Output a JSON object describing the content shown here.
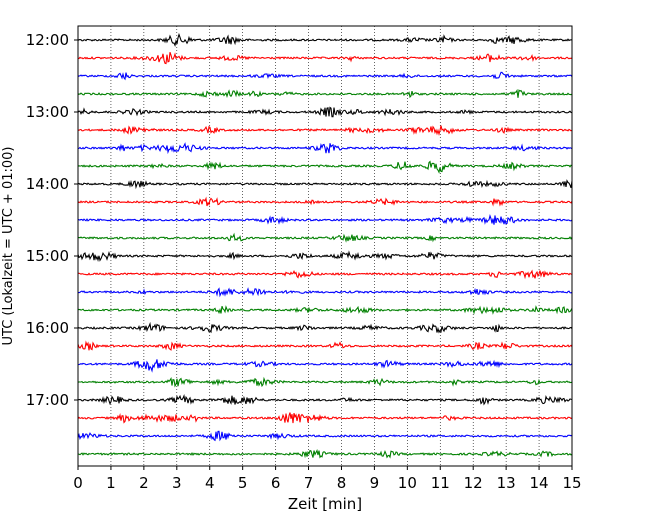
{
  "chart_data": {
    "type": "line",
    "subtype": "seismogram-helicorder",
    "xlabel": "Zeit  [min]",
    "ylabel": "UTC (Lokalzeit = UTC + 01:00)",
    "xlim": [
      0,
      15
    ],
    "x_ticks": [
      "0",
      "1",
      "2",
      "3",
      "4",
      "5",
      "6",
      "7",
      "8",
      "9",
      "10",
      "11",
      "12",
      "13",
      "14",
      "15"
    ],
    "y_ticks": [
      "12:00",
      "13:00",
      "14:00",
      "15:00",
      "16:00",
      "17:00"
    ],
    "x_grid": "dotted vertical lines at each minute",
    "trace_interval_minutes": 15,
    "start_time": "12:00",
    "trace_count": 24,
    "trace_colors": [
      "#000000",
      "#ff0000",
      "#0000ff",
      "#008000"
    ],
    "color_cycle_note": "black, red, blue, green repeating per trace",
    "legend": "none"
  }
}
